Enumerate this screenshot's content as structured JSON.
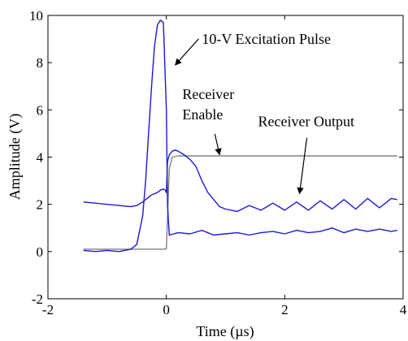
{
  "chart_data": {
    "type": "line",
    "title": "",
    "xlabel": "Time (µs)",
    "ylabel": "Amplitude (V)",
    "xlim": [
      -2,
      4
    ],
    "ylim": [
      -2,
      10
    ],
    "xticks": [
      -2,
      0,
      2,
      4
    ],
    "xtick_labels": [
      "-2",
      "0",
      "2",
      "4"
    ],
    "yticks": [
      -2,
      0,
      2,
      4,
      6,
      8,
      10
    ],
    "ytick_labels": [
      "-2",
      "0",
      "2",
      "4",
      "6",
      "8",
      "10"
    ],
    "grid": false,
    "legend": "none",
    "annotations": [
      {
        "text": "10-V Excitation Pulse",
        "x": 0.6,
        "y": 8.8,
        "arrow_to": [
          0.15,
          7.9
        ]
      },
      {
        "text": "Receiver",
        "x": 0.27,
        "y": 6.45
      },
      {
        "text": "Enable",
        "x": 0.27,
        "y": 5.6,
        "arrow_to": [
          0.9,
          4.1
        ]
      },
      {
        "text": "Receiver Output",
        "x": 1.55,
        "y": 5.3,
        "arrow_to": [
          2.25,
          2.45
        ]
      }
    ],
    "series": [
      {
        "color": "#808080",
        "x": [
          -1.4,
          -0.05,
          0.0,
          0.05,
          0.1,
          0.2,
          0.5,
          1.0,
          2.0,
          3.0,
          3.9
        ],
        "y": [
          0.1,
          0.1,
          0.12,
          3.5,
          4.0,
          4.05,
          4.05,
          4.05,
          4.05,
          4.05,
          4.05
        ]
      },
      {
        "color": "#1a1adb",
        "x": [
          -1.4,
          -1.2,
          -1.0,
          -0.8,
          -0.6,
          -0.5,
          -0.4,
          -0.35,
          -0.3,
          -0.25,
          -0.2,
          -0.15,
          -0.1,
          -0.05,
          -0.02,
          0.0,
          0.02,
          0.05,
          0.1,
          0.15,
          0.2,
          0.3,
          0.4,
          0.5,
          0.6,
          0.7,
          0.8,
          0.9,
          1.0,
          1.2,
          1.4,
          1.6,
          1.8,
          2.0,
          2.2,
          2.4,
          2.6,
          2.8,
          3.0,
          3.2,
          3.4,
          3.6,
          3.8,
          3.9
        ],
        "y": [
          2.1,
          2.05,
          2.0,
          1.95,
          1.9,
          1.95,
          2.1,
          2.2,
          2.3,
          2.4,
          2.45,
          2.5,
          2.6,
          2.65,
          2.6,
          2.5,
          3.8,
          4.1,
          4.25,
          4.3,
          4.25,
          4.1,
          3.9,
          3.6,
          3.0,
          2.5,
          2.2,
          1.9,
          1.8,
          1.7,
          1.95,
          1.75,
          2.05,
          1.75,
          2.1,
          1.75,
          2.15,
          1.8,
          2.2,
          1.8,
          2.25,
          1.85,
          2.25,
          2.2
        ]
      },
      {
        "color": "#1a1adb",
        "x": [
          -1.4,
          -1.2,
          -1.0,
          -0.8,
          -0.6,
          -0.5,
          -0.4,
          -0.35,
          -0.3,
          -0.25,
          -0.2,
          -0.15,
          -0.1,
          -0.05,
          0.0,
          0.02,
          0.05,
          0.2,
          0.4,
          0.6,
          0.8,
          1.0,
          1.2,
          1.4,
          1.6,
          1.8,
          2.0,
          2.2,
          2.4,
          2.6,
          2.8,
          3.0,
          3.2,
          3.4,
          3.6,
          3.8,
          3.9
        ],
        "y": [
          0.05,
          0.0,
          0.05,
          0.0,
          0.1,
          0.3,
          1.5,
          3.0,
          5.0,
          7.0,
          8.7,
          9.6,
          9.8,
          9.7,
          6.0,
          2.0,
          0.7,
          0.8,
          0.75,
          0.9,
          0.7,
          0.75,
          0.8,
          0.7,
          0.8,
          0.85,
          0.75,
          0.9,
          0.8,
          0.85,
          1.0,
          0.8,
          0.95,
          0.85,
          0.95,
          0.85,
          0.9
        ]
      }
    ]
  }
}
